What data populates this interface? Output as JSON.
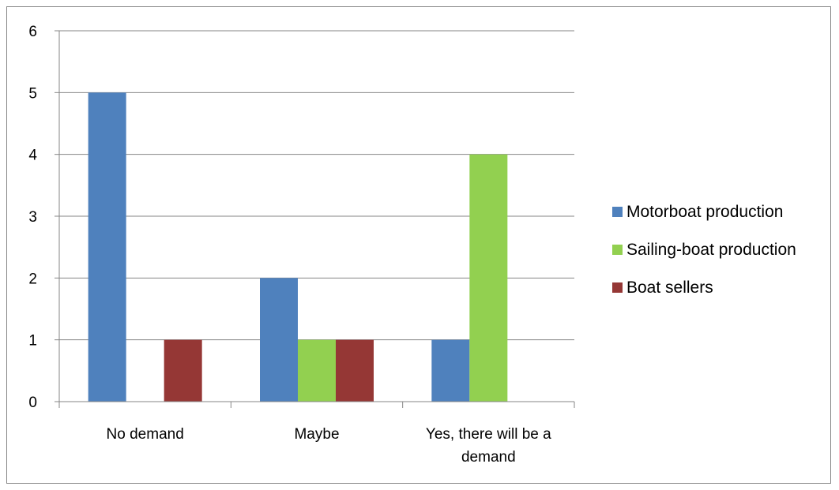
{
  "chart_data": {
    "type": "bar",
    "title": "",
    "xlabel": "",
    "ylabel": "",
    "categories": [
      [
        "No demand"
      ],
      [
        "Maybe"
      ],
      [
        "Yes, there will be a",
        "demand"
      ]
    ],
    "series": [
      {
        "name": "Motorboat production",
        "color": "#4f81bd",
        "values": [
          5,
          2,
          1
        ]
      },
      {
        "name": "Sailing-boat production",
        "color": "#92d050",
        "values": [
          0,
          1,
          4
        ]
      },
      {
        "name": "Boat sellers",
        "color": "#953735",
        "values": [
          1,
          1,
          0
        ]
      }
    ],
    "ylim": [
      0,
      6
    ],
    "yticks": [
      "0",
      "1",
      "2",
      "3",
      "4",
      "5",
      "6"
    ],
    "grid": true,
    "legend": "right"
  }
}
